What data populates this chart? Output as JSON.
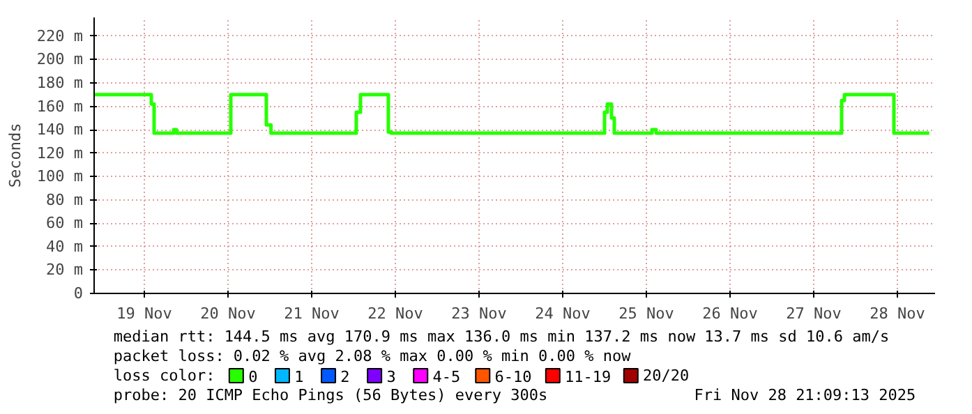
{
  "chart_data": {
    "type": "step",
    "ylabel": "Seconds",
    "legend_title": "loss color:",
    "legend": "bottom",
    "grid": true,
    "marker": "none",
    "line_style": "solid",
    "x": [
      "2025-11-18T21:36",
      "2025-11-19T14:00",
      "2025-11-19T14:48",
      "2025-11-19T20:24",
      "2025-11-19T21:12",
      "2025-11-20T12:48",
      "2025-11-20T23:00",
      "2025-11-21T00:20",
      "2025-11-22T00:48",
      "2025-11-22T02:00",
      "2025-11-22T10:00",
      "2025-11-22T10:48",
      "2025-11-25T00:00",
      "2025-11-25T00:48",
      "2025-11-25T02:00",
      "2025-11-25T02:48",
      "2025-11-25T13:36",
      "2025-11-25T14:48",
      "2025-11-27T20:00",
      "2025-11-27T20:48",
      "2025-11-28T11:00",
      "2025-11-28T21:09"
    ],
    "series": [
      {
        "name": "0",
        "color": "#26ff00",
        "values": [
          170,
          162,
          137,
          140,
          137,
          170,
          144,
          137,
          155,
          170,
          138,
          137,
          155,
          162,
          150,
          137,
          140,
          137,
          165,
          170,
          137,
          137
        ]
      },
      {
        "name": "1",
        "color": "#00b8ff",
        "values": [
          null,
          null,
          null,
          null,
          null,
          null,
          null,
          null,
          null,
          null,
          null,
          null,
          null,
          null,
          null,
          null,
          null,
          null,
          null,
          null,
          null,
          null
        ]
      },
      {
        "name": "2",
        "color": "#0059ff",
        "values": [
          null,
          null,
          null,
          null,
          null,
          null,
          null,
          null,
          null,
          null,
          null,
          null,
          null,
          null,
          null,
          null,
          null,
          null,
          null,
          null,
          null,
          null
        ]
      },
      {
        "name": "3",
        "color": "#7e00ff",
        "values": [
          null,
          null,
          null,
          null,
          null,
          null,
          null,
          null,
          null,
          null,
          null,
          null,
          null,
          null,
          null,
          null,
          null,
          null,
          null,
          null,
          null,
          null
        ]
      },
      {
        "name": "4-5",
        "color": "#ff00ff",
        "values": [
          null,
          null,
          null,
          null,
          null,
          null,
          null,
          null,
          null,
          null,
          null,
          null,
          null,
          null,
          null,
          null,
          null,
          null,
          null,
          null,
          null,
          null
        ]
      },
      {
        "name": "6-10",
        "color": "#ff5500",
        "values": [
          null,
          null,
          null,
          null,
          null,
          null,
          null,
          null,
          null,
          null,
          null,
          null,
          null,
          null,
          null,
          null,
          null,
          null,
          null,
          null,
          null,
          null
        ]
      },
      {
        "name": "11-19",
        "color": "#ff0000",
        "values": [
          null,
          null,
          null,
          null,
          null,
          null,
          null,
          null,
          null,
          null,
          null,
          null,
          null,
          null,
          null,
          null,
          null,
          null,
          null,
          null,
          null,
          null
        ]
      },
      {
        "name": "20/20",
        "color": "#a10000",
        "values": [
          null,
          null,
          null,
          null,
          null,
          null,
          null,
          null,
          null,
          null,
          null,
          null,
          null,
          null,
          null,
          null,
          null,
          null,
          null,
          null,
          null,
          null
        ]
      }
    ],
    "xlim": [
      "2025-11-18T21:36",
      "2025-11-28T22:48"
    ],
    "xticks": [
      {
        "value": "2025-11-19T12:00",
        "label": "19 Nov"
      },
      {
        "value": "2025-11-20T12:00",
        "label": "20 Nov"
      },
      {
        "value": "2025-11-21T12:00",
        "label": "21 Nov"
      },
      {
        "value": "2025-11-22T12:00",
        "label": "22 Nov"
      },
      {
        "value": "2025-11-23T12:00",
        "label": "23 Nov"
      },
      {
        "value": "2025-11-24T12:00",
        "label": "24 Nov"
      },
      {
        "value": "2025-11-25T12:00",
        "label": "25 Nov"
      },
      {
        "value": "2025-11-26T12:00",
        "label": "26 Nov"
      },
      {
        "value": "2025-11-27T12:00",
        "label": "27 Nov"
      },
      {
        "value": "2025-11-28T12:00",
        "label": "28 Nov"
      }
    ],
    "ylim": [
      0,
      236
    ],
    "yticks": [
      0,
      {
        "value": 20,
        "label": "20 m"
      },
      {
        "value": 40,
        "label": "40 m"
      },
      {
        "value": 60,
        "label": "60 m"
      },
      {
        "value": 80,
        "label": "80 m"
      },
      {
        "value": 100,
        "label": "100 m"
      },
      {
        "value": 120,
        "label": "120 m"
      },
      {
        "value": 140,
        "label": "140 m"
      },
      {
        "value": 160,
        "label": "160 m"
      },
      {
        "value": 180,
        "label": "180 m"
      },
      {
        "value": 200,
        "label": "200 m"
      },
      {
        "value": 220,
        "label": "220 m"
      }
    ],
    "annotations": [
      "median rtt:  144.5 ms avg  170.9 ms max  136.0 ms min  137.2 ms now  13.7 ms sd  10.6   am/s",
      "packet loss: 0.02 % avg  2.08 % max  0.00 % min  0.00 % now",
      "probe:       20 ICMP Echo Pings (56 Bytes) every 300s",
      "Fri Nov 28 21:09:13 2025"
    ]
  }
}
